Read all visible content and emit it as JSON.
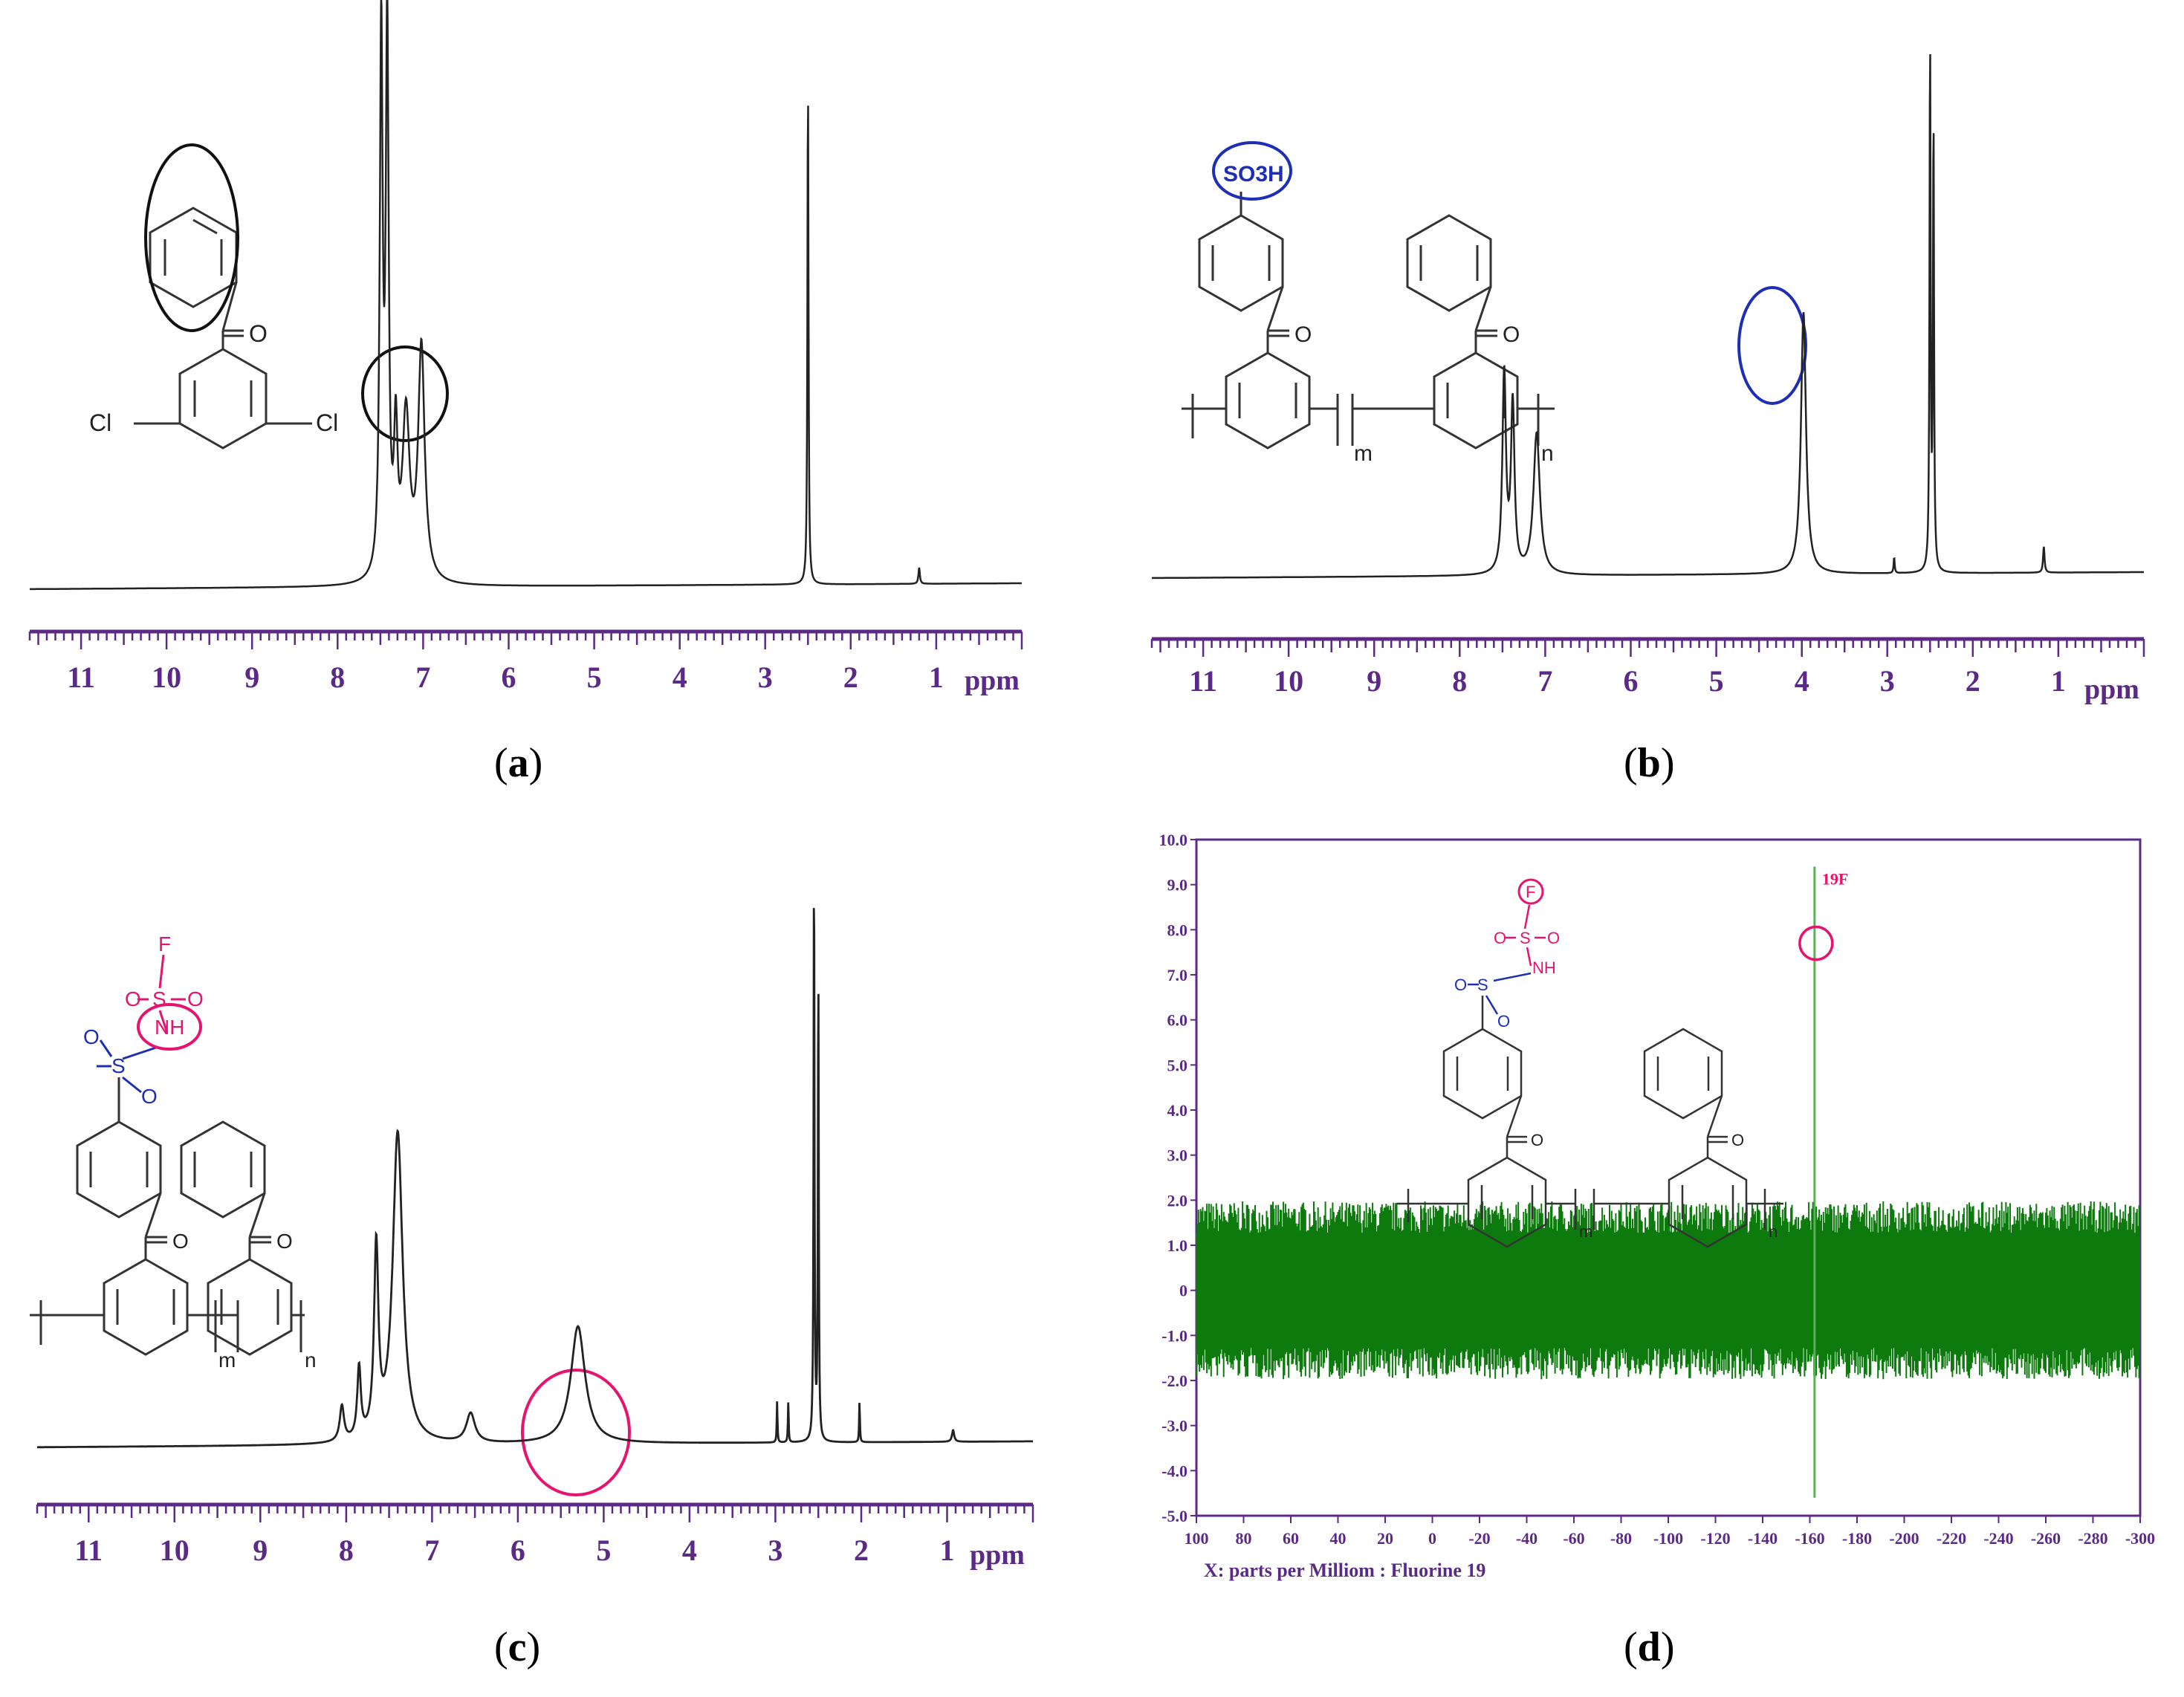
{
  "panel_labels": {
    "a": "a",
    "b": "b",
    "c": "c",
    "d": "d"
  },
  "colors": {
    "axis_purple": "#5b2a86",
    "trace_black": "#222222",
    "blue": "#1f2fb5",
    "magenta": "#e6146f",
    "green": "#0c7a0c",
    "green_light": "#58b058"
  },
  "chart_data": [
    {
      "id": "a",
      "type": "line",
      "xlabel": "ppm",
      "xlim": [
        11.6,
        0
      ],
      "x_ticks": [
        "11",
        "10",
        "9",
        "8",
        "7",
        "6",
        "5",
        "4",
        "3",
        "2",
        "1"
      ],
      "peaks": [
        {
          "ppm": 7.49,
          "height": 1.0,
          "width": 0.04
        },
        {
          "ppm": 7.42,
          "height": 1.0,
          "width": 0.04
        },
        {
          "ppm": 7.32,
          "height": 0.25,
          "width": 0.05
        },
        {
          "ppm": 7.2,
          "height": 0.3,
          "width": 0.1
        },
        {
          "ppm": 7.02,
          "height": 0.43,
          "width": 0.09
        },
        {
          "ppm": 2.5,
          "height": 0.92,
          "width": 0.015
        },
        {
          "ppm": 1.2,
          "height": 0.03,
          "width": 0.02
        }
      ],
      "molecule": {
        "atoms": [
          "O",
          "Cl",
          "Cl"
        ]
      }
    },
    {
      "id": "b",
      "type": "line",
      "xlabel": "ppm",
      "xlim": [
        11.6,
        0
      ],
      "x_ticks": [
        "11",
        "10",
        "9",
        "8",
        "7",
        "6",
        "5",
        "4",
        "3",
        "2",
        "1"
      ],
      "peaks": [
        {
          "ppm": 7.48,
          "height": 0.38,
          "width": 0.05
        },
        {
          "ppm": 7.38,
          "height": 0.32,
          "width": 0.05
        },
        {
          "ppm": 7.1,
          "height": 0.27,
          "width": 0.09
        },
        {
          "ppm": 3.98,
          "height": 0.5,
          "width": 0.07
        },
        {
          "ppm": 2.92,
          "height": 0.03,
          "width": 0.015
        },
        {
          "ppm": 2.5,
          "height": 1.0,
          "width": 0.015
        },
        {
          "ppm": 2.46,
          "height": 0.85,
          "width": 0.015
        },
        {
          "ppm": 1.17,
          "height": 0.05,
          "width": 0.02
        }
      ],
      "molecule": {
        "atoms": [
          "SO3H",
          "O",
          "O",
          "m",
          "n"
        ]
      }
    },
    {
      "id": "c",
      "type": "line",
      "xlabel": "ppm",
      "xlim": [
        11.6,
        0
      ],
      "x_ticks": [
        "11",
        "10",
        "9",
        "8",
        "7",
        "6",
        "5",
        "4",
        "3",
        "2",
        "1"
      ],
      "peaks": [
        {
          "ppm": 8.05,
          "height": 0.06,
          "width": 0.06
        },
        {
          "ppm": 7.85,
          "height": 0.12,
          "width": 0.05
        },
        {
          "ppm": 7.65,
          "height": 0.32,
          "width": 0.06
        },
        {
          "ppm": 7.4,
          "height": 0.53,
          "width": 0.14
        },
        {
          "ppm": 6.55,
          "height": 0.05,
          "width": 0.12
        },
        {
          "ppm": 5.3,
          "height": 0.2,
          "width": 0.2
        },
        {
          "ppm": 2.98,
          "height": 0.07,
          "width": 0.01
        },
        {
          "ppm": 2.85,
          "height": 0.07,
          "width": 0.01
        },
        {
          "ppm": 2.55,
          "height": 1.0,
          "width": 0.012
        },
        {
          "ppm": 2.5,
          "height": 0.8,
          "width": 0.012
        },
        {
          "ppm": 2.02,
          "height": 0.07,
          "width": 0.01
        },
        {
          "ppm": 0.93,
          "height": 0.02,
          "width": 0.03
        }
      ],
      "molecule": {
        "atoms": [
          "F",
          "O",
          "S",
          "O",
          "NH",
          "O",
          "S",
          "O",
          "O",
          "O",
          "m",
          "n"
        ]
      }
    },
    {
      "id": "d",
      "type": "line",
      "xlabel": "X: parts per Milliom : Fluorine 19",
      "xlim": [
        100,
        -300
      ],
      "ylim": [
        -5.0,
        10.0
      ],
      "x_ticks": [
        "100",
        "80",
        "60",
        "40",
        "20",
        "0",
        "-20",
        "-40",
        "-60",
        "-80",
        "-100",
        "-120",
        "-140",
        "-160",
        "-180",
        "-200",
        "-220",
        "-240",
        "-260",
        "-280",
        "-300"
      ],
      "y_ticks": [
        "10.0",
        "9.0",
        "8.0",
        "7.0",
        "6.0",
        "5.0",
        "4.0",
        "3.0",
        "2.0",
        "1.0",
        "0",
        "-1.0",
        "-2.0",
        "-3.0",
        "-4.0",
        "-5.0"
      ],
      "noise_band": [
        -1.5,
        1.5
      ],
      "peaks": [
        {
          "ppm": -162,
          "y_max": 9.4,
          "y_min": -4.6
        }
      ],
      "annotation": "19F",
      "molecule": {
        "atoms": [
          "F",
          "O",
          "S",
          "O",
          "NH",
          "O",
          "S",
          "O",
          "O",
          "O",
          "m",
          "n"
        ]
      }
    }
  ]
}
